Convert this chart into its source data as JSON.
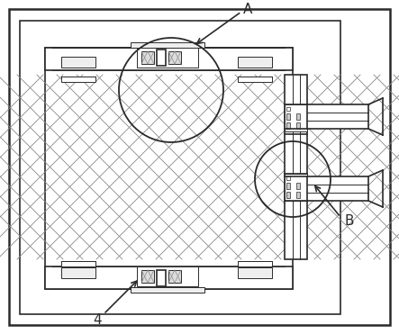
{
  "bg_color": "#ffffff",
  "line_color": "#2a2a2a",
  "figsize": [
    4.43,
    3.71
  ],
  "dpi": 100,
  "label_A": "A",
  "label_B": "B",
  "label_4": "4"
}
